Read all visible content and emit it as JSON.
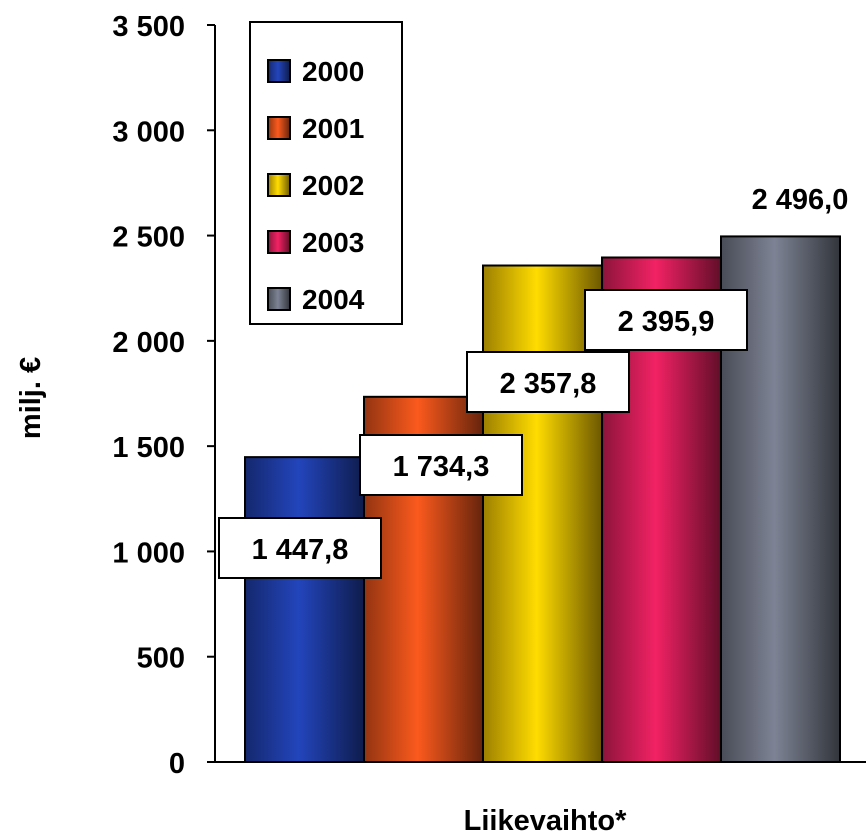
{
  "chart_data": {
    "type": "bar",
    "categories": [
      "Liikevaihto*"
    ],
    "series": [
      {
        "name": "2000",
        "values": [
          1447.8
        ],
        "label": "1 447,8",
        "color": "#1f3ea8"
      },
      {
        "name": "2001",
        "values": [
          1734.3
        ],
        "label": "1 734,3",
        "color": "#e0501a"
      },
      {
        "name": "2002",
        "values": [
          2357.8
        ],
        "label": "2 357,8",
        "color": "#f0c400"
      },
      {
        "name": "2003",
        "values": [
          2395.9
        ],
        "label": "2 395,9",
        "color": "#d81e5a"
      },
      {
        "name": "2004",
        "values": [
          2496.0
        ],
        "label": "2 496,0",
        "color": "#707584"
      }
    ],
    "ylabel": "milj. €",
    "xlabel": "Liikevaihto*",
    "ylim": [
      0,
      3500
    ],
    "yticks": [
      0,
      500,
      1000,
      1500,
      2000,
      2500,
      3000,
      3500
    ],
    "ytick_labels": [
      "0",
      "500",
      "1 000",
      "1 500",
      "2 000",
      "2 500",
      "3 000",
      "3 500"
    ],
    "grid": false,
    "legend_position": "top-left"
  }
}
